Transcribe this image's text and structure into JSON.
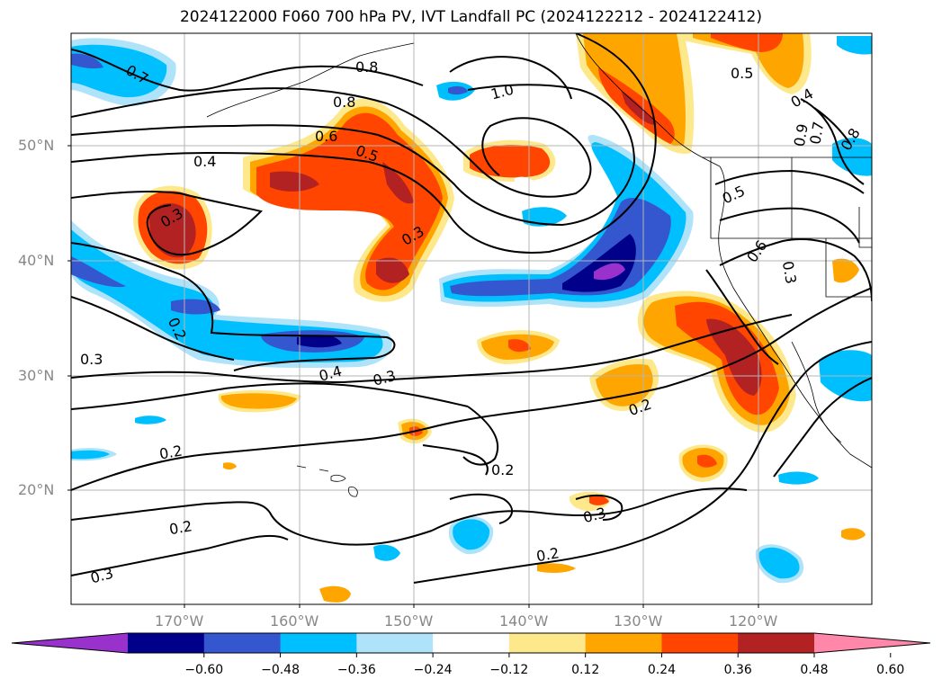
{
  "title": "2024122000 F060 700 hPa PV, IVT Landfall PC (2024122212 - 2024122412)",
  "axes": {
    "lat_labels": [
      "50°N",
      "40°N",
      "30°N",
      "20°N"
    ],
    "lon_labels": [
      "170°W",
      "160°W",
      "150°W",
      "140°W",
      "130°W",
      "120°W"
    ]
  },
  "colorbar": {
    "colors": [
      "#9932cc",
      "#00008b",
      "#3457cf",
      "#00bfff",
      "#aee3fa",
      "#ffffff",
      "#fde98c",
      "#ffa500",
      "#ff4500",
      "#b22222",
      "#ff88aa"
    ],
    "ticks": [
      "−0.60",
      "−0.48",
      "−0.36",
      "−0.24",
      "−0.12",
      "0.12",
      "0.24",
      "0.36",
      "0.48",
      "0.60"
    ]
  },
  "contour_labels": [
    "0.7",
    "0.8",
    "1.0",
    "0.8",
    "0.6",
    "0.4",
    "0.5",
    "0.3",
    "0.3",
    "0.5",
    "0.4",
    "0.9",
    "0.7",
    "0.8",
    "0.5",
    "0.6",
    "0.3",
    "0.2",
    "0.3",
    "0.4",
    "0.3",
    "0.2",
    "0.2",
    "0.2",
    "0.3",
    "0.2",
    "0.3"
  ]
}
